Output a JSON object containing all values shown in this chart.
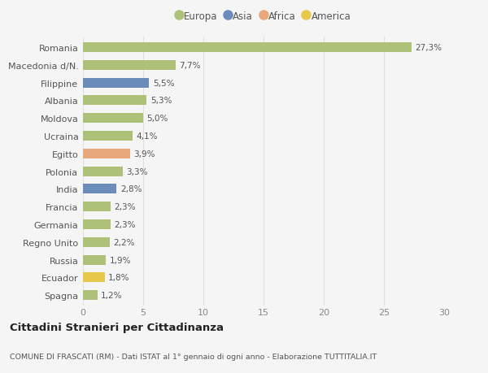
{
  "countries": [
    "Romania",
    "Macedonia d/N.",
    "Filippine",
    "Albania",
    "Moldova",
    "Ucraina",
    "Egitto",
    "Polonia",
    "India",
    "Francia",
    "Germania",
    "Regno Unito",
    "Russia",
    "Ecuador",
    "Spagna"
  ],
  "values": [
    27.3,
    7.7,
    5.5,
    5.3,
    5.0,
    4.1,
    3.9,
    3.3,
    2.8,
    2.3,
    2.3,
    2.2,
    1.9,
    1.8,
    1.2
  ],
  "labels": [
    "27,3%",
    "7,7%",
    "5,5%",
    "5,3%",
    "5,0%",
    "4,1%",
    "3,9%",
    "3,3%",
    "2,8%",
    "2,3%",
    "2,3%",
    "2,2%",
    "1,9%",
    "1,8%",
    "1,2%"
  ],
  "bar_colors": [
    "#adc178",
    "#adc178",
    "#6b8cba",
    "#adc178",
    "#adc178",
    "#adc178",
    "#e8a87c",
    "#adc178",
    "#6b8cba",
    "#adc178",
    "#adc178",
    "#adc178",
    "#adc178",
    "#e8c84a",
    "#adc178"
  ],
  "legend_labels": [
    "Europa",
    "Asia",
    "Africa",
    "America"
  ],
  "legend_colors": [
    "#adc178",
    "#6b8cba",
    "#e8a87c",
    "#e8c84a"
  ],
  "title": "Cittadini Stranieri per Cittadinanza",
  "subtitle": "COMUNE DI FRASCATI (RM) - Dati ISTAT al 1° gennaio di ogni anno - Elaborazione TUTTITALIA.IT",
  "xlim": [
    0,
    30
  ],
  "xticks": [
    0,
    5,
    10,
    15,
    20,
    25,
    30
  ],
  "background_color": "#f5f5f5",
  "grid_color": "#e0e0e0",
  "bar_height": 0.55
}
